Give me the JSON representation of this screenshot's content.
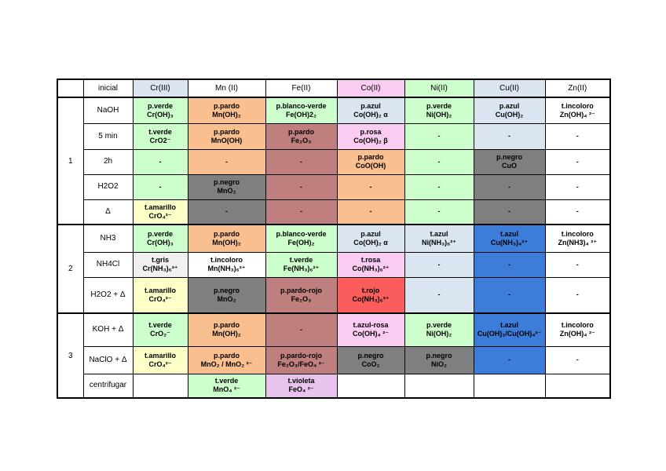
{
  "palette": {
    "white": "#ffffff",
    "green": "#ccffcc",
    "orange": "#fabf8f",
    "maroon": "#bf7f7f",
    "lightblue": "#dbe5f1",
    "pink": "#fbccf2",
    "blue": "#3b7dd8",
    "gray": "#7f7f7f",
    "lightgray": "#f0f0f0",
    "yellow": "#ffffc8",
    "red": "#fb5d5d",
    "violet": "#e8c3ee"
  },
  "header": {
    "corner": "",
    "cols": [
      {
        "label": "inicial",
        "bg": "white"
      },
      {
        "label": "Cr(III)",
        "bg": "lightblue"
      },
      {
        "label": "Mn (II)",
        "bg": "white"
      },
      {
        "label": "Fe(II)",
        "bg": "white"
      },
      {
        "label": "Co(II)",
        "bg": "pink"
      },
      {
        "label": "Ni(II)",
        "bg": "green"
      },
      {
        "label": "Cu(II)",
        "bg": "lightblue"
      },
      {
        "label": "Zn(II)",
        "bg": "white"
      }
    ]
  },
  "sections": [
    {
      "number": "1",
      "rows": [
        {
          "label": "NaOH",
          "cells": [
            {
              "t1": "p.verde",
              "t2": "Cr(OH)₃",
              "bg": "green"
            },
            {
              "t1": "p.pardo",
              "t2": "Mn(OH)₂",
              "bg": "orange"
            },
            {
              "t1": "p.blanco-verde",
              "t2": "Fe(OH)2₂",
              "bg": "green"
            },
            {
              "t1": "p.azul",
              "t2": "Co(OH)₂ α",
              "bg": "lightblue"
            },
            {
              "t1": "p.verde",
              "t2": "Ni(OH)₂",
              "bg": "green"
            },
            {
              "t1": "p.azul",
              "t2": "Cu(OH)₂",
              "bg": "lightblue"
            },
            {
              "t1": "t.incoloro",
              "t2": "Zn(OH)₄ ²⁻",
              "bg": "white"
            }
          ]
        },
        {
          "label": "5 min",
          "cells": [
            {
              "t1": "t.verde",
              "t2": "CrO2⁻",
              "bg": "green"
            },
            {
              "t1": "p.pardo",
              "t2": "MnO(OH)",
              "bg": "orange"
            },
            {
              "t1": "p.pardo",
              "t2": "Fe₂O₃",
              "bg": "maroon"
            },
            {
              "t1": "p.rosa",
              "t2": "Co(OH)₂ β",
              "bg": "pink"
            },
            {
              "t1": "-",
              "t2": "",
              "bg": "green"
            },
            {
              "t1": "-",
              "t2": "",
              "bg": "lightblue"
            },
            {
              "t1": "-",
              "t2": "",
              "bg": "white"
            }
          ]
        },
        {
          "label": "2h",
          "cells": [
            {
              "t1": "-",
              "t2": "",
              "bg": "green"
            },
            {
              "t1": "-",
              "t2": "",
              "bg": "orange"
            },
            {
              "t1": "-",
              "t2": "",
              "bg": "maroon"
            },
            {
              "t1": "p.pardo",
              "t2": "CoO(OH)",
              "bg": "orange"
            },
            {
              "t1": "-",
              "t2": "",
              "bg": "green"
            },
            {
              "t1": "p.negro",
              "t2": "CuO",
              "bg": "gray"
            },
            {
              "t1": "-",
              "t2": "",
              "bg": "white"
            }
          ]
        },
        {
          "label": "H2O2",
          "cells": [
            {
              "t1": "-",
              "t2": "",
              "bg": "green"
            },
            {
              "t1": "p.negro",
              "t2": "MnO₂",
              "bg": "gray"
            },
            {
              "t1": "-",
              "t2": "",
              "bg": "maroon"
            },
            {
              "t1": "-",
              "t2": "",
              "bg": "orange"
            },
            {
              "t1": "-",
              "t2": "",
              "bg": "green"
            },
            {
              "t1": "-",
              "t2": "",
              "bg": "gray"
            },
            {
              "t1": "-",
              "t2": "",
              "bg": "white"
            }
          ]
        },
        {
          "label": "Δ",
          "cells": [
            {
              "t1": "t.amarillo",
              "t2": "CrO₄²⁻",
              "bg": "yellow"
            },
            {
              "t1": "-",
              "t2": "",
              "bg": "gray"
            },
            {
              "t1": "-",
              "t2": "",
              "bg": "maroon"
            },
            {
              "t1": "-",
              "t2": "",
              "bg": "orange"
            },
            {
              "t1": "-",
              "t2": "",
              "bg": "green"
            },
            {
              "t1": "-",
              "t2": "",
              "bg": "gray"
            },
            {
              "t1": "-",
              "t2": "",
              "bg": "white"
            }
          ]
        }
      ]
    },
    {
      "number": "2",
      "rows": [
        {
          "label": "NH3",
          "cells": [
            {
              "t1": "p.verde",
              "t2": "Cr(OH)₃",
              "bg": "green"
            },
            {
              "t1": "p.pardo",
              "t2": "Mn(OH)₂",
              "bg": "orange"
            },
            {
              "t1": "p.blanco-verde",
              "t2": "Fe(OH)₂",
              "bg": "green"
            },
            {
              "t1": "p.azul",
              "t2": "Co(OH)₂ α",
              "bg": "lightblue"
            },
            {
              "t1": "t.azul",
              "t2": "Ni(NH₃)₆²⁺",
              "bg": "lightblue"
            },
            {
              "t1": "t.azul",
              "t2": "Cu(NH₃)₄²⁺",
              "bg": "blue"
            },
            {
              "t1": "t.incoloro",
              "t2": "Zn(NH3)₄ ²⁺",
              "bg": "white"
            }
          ]
        },
        {
          "label": "NH4Cl",
          "cells": [
            {
              "t1": "t.gris",
              "t2": "Cr(NH₃)₆³⁺",
              "bg": "lightgray"
            },
            {
              "t1": "t.incoloro",
              "t2": "Mn(NH₃)₆²⁺",
              "bg": "white"
            },
            {
              "t1": "t.verde",
              "t2": "Fe(NH₃)₆²⁺",
              "bg": "green"
            },
            {
              "t1": "t.rosa",
              "t2": "Co(NH₃)₆²⁺",
              "bg": "pink"
            },
            {
              "t1": "-",
              "t2": "",
              "bg": "lightblue"
            },
            {
              "t1": "-",
              "t2": "",
              "bg": "blue"
            },
            {
              "t1": "-",
              "t2": "",
              "bg": "white"
            }
          ]
        },
        {
          "label": "H2O2 + Δ",
          "cells": [
            {
              "t1": "t.amarillo",
              "t2": "CrO₄²⁻",
              "bg": "yellow"
            },
            {
              "t1": "p.negro",
              "t2": "MnO₂",
              "bg": "gray"
            },
            {
              "t1": "p.pardo-rojo",
              "t2": "Fe₂O₃",
              "bg": "maroon"
            },
            {
              "t1": "t.rojo",
              "t2": "Co(NH₃)₆³⁺",
              "bg": "red"
            },
            {
              "t1": "-",
              "t2": "",
              "bg": "lightblue"
            },
            {
              "t1": "-",
              "t2": "",
              "bg": "blue"
            },
            {
              "t1": "-",
              "t2": "",
              "bg": "white"
            }
          ]
        }
      ]
    },
    {
      "number": "3",
      "rows": [
        {
          "label": "KOH + Δ",
          "cells": [
            {
              "t1": "t.verde",
              "t2": "CrO₂⁻",
              "bg": "green"
            },
            {
              "t1": "p.pardo",
              "t2": "Mn(OH)₂",
              "bg": "orange"
            },
            {
              "t1": "-",
              "t2": "",
              "bg": "maroon"
            },
            {
              "t1": "t.azul-rosa",
              "t2": "Co(OH)₄ ²⁻",
              "bg": "pink"
            },
            {
              "t1": "p.verde",
              "t2": "Ni(OH)₂",
              "bg": "green"
            },
            {
              "t1": "t.azul",
              "t2": "Cu(OH)₂/Cu(OH)₄²⁻",
              "bg": "blue"
            },
            {
              "t1": "t.incoloro",
              "t2": "Zn(OH)₄ ²⁻",
              "bg": "white"
            }
          ]
        },
        {
          "label": "NaClO + Δ",
          "cells": [
            {
              "t1": "t.amarillo",
              "t2": "CrO₄²⁻",
              "bg": "yellow"
            },
            {
              "t1": "p.pardo",
              "t2": "MnO₂ / MnO₂ ²⁻",
              "bg": "orange"
            },
            {
              "t1": "p.pardo-rojo",
              "t2": "Fe₂O₃/FeO₄ ²⁻",
              "bg": "maroon"
            },
            {
              "t1": "p.negro",
              "t2": "CoO₂",
              "bg": "gray"
            },
            {
              "t1": "p.negro",
              "t2": "NiO₂",
              "bg": "gray"
            },
            {
              "t1": "-",
              "t2": "",
              "bg": "blue"
            },
            {
              "t1": "-",
              "t2": "",
              "bg": "white"
            }
          ]
        },
        {
          "label": "centrifugar",
          "cells": [
            {
              "t1": "",
              "t2": "",
              "bg": "white"
            },
            {
              "t1": "t.verde",
              "t2": "MnO₄ ²⁻",
              "bg": "green"
            },
            {
              "t1": "t.violeta",
              "t2": "FeO₄ ²⁻",
              "bg": "violet"
            },
            {
              "t1": "",
              "t2": "",
              "bg": "white"
            },
            {
              "t1": "",
              "t2": "",
              "bg": "white"
            },
            {
              "t1": "",
              "t2": "",
              "bg": "white"
            },
            {
              "t1": "",
              "t2": "",
              "bg": "white"
            }
          ]
        }
      ]
    }
  ]
}
